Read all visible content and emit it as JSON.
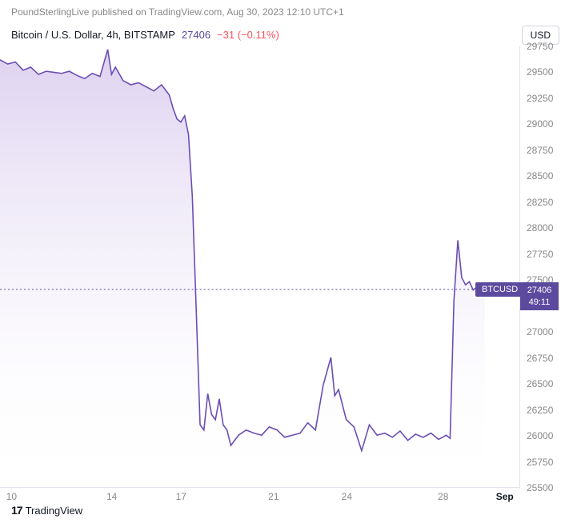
{
  "header": {
    "publisher": "PoundSterlingLive published on TradingView.com, Aug 30, 2023 12:10 UTC+1"
  },
  "symbol": {
    "title": "Bitcoin / U.S. Dollar, 4h, BITSTAMP",
    "price": "27406",
    "change": "−31 (−0.11%)"
  },
  "currency_label": "USD",
  "price_tag": {
    "pair": "BTCUSD",
    "value": "27406",
    "countdown": "49:11"
  },
  "footer": {
    "brand": "TradingView",
    "icon": "17"
  },
  "chart": {
    "type": "area",
    "line_color": "#6a4db3",
    "fill_top_color": "#cbb9e8",
    "fill_bottom_color": "#ffffff",
    "background_color": "#ffffff",
    "grid_color": "#e0e3eb",
    "dotted_line_color": "#5b4a9e",
    "current_value": 27406,
    "ylim": [
      25500,
      29750
    ],
    "yticks": [
      25500,
      25750,
      26000,
      26250,
      26500,
      26750,
      27000,
      27406,
      27500,
      27750,
      28000,
      28250,
      28500,
      28750,
      29000,
      29250,
      29500,
      29750
    ],
    "yticks_visible": [
      25500,
      25750,
      26000,
      26250,
      26500,
      26750,
      27000,
      27500,
      27750,
      28000,
      28250,
      28500,
      28750,
      29000,
      29250,
      29500,
      29750
    ],
    "xlim": [
      0,
      135
    ],
    "xticks": [
      {
        "pos": 3,
        "label": "10",
        "bold": false
      },
      {
        "pos": 29,
        "label": "14",
        "bold": false
      },
      {
        "pos": 47,
        "label": "17",
        "bold": false
      },
      {
        "pos": 71,
        "label": "21",
        "bold": false
      },
      {
        "pos": 90,
        "label": "24",
        "bold": false
      },
      {
        "pos": 115,
        "label": "28",
        "bold": false
      },
      {
        "pos": 131,
        "label": "Sep",
        "bold": true
      }
    ],
    "series": [
      [
        0,
        29620
      ],
      [
        2,
        29580
      ],
      [
        4,
        29600
      ],
      [
        6,
        29520
      ],
      [
        8,
        29550
      ],
      [
        10,
        29480
      ],
      [
        12,
        29510
      ],
      [
        14,
        29500
      ],
      [
        16,
        29490
      ],
      [
        18,
        29510
      ],
      [
        20,
        29470
      ],
      [
        22,
        29440
      ],
      [
        24,
        29490
      ],
      [
        26,
        29460
      ],
      [
        28,
        29720
      ],
      [
        29,
        29480
      ],
      [
        30,
        29550
      ],
      [
        32,
        29420
      ],
      [
        34,
        29380
      ],
      [
        36,
        29400
      ],
      [
        38,
        29360
      ],
      [
        40,
        29320
      ],
      [
        42,
        29380
      ],
      [
        44,
        29280
      ],
      [
        45,
        29150
      ],
      [
        46,
        29050
      ],
      [
        47,
        29020
      ],
      [
        48,
        29080
      ],
      [
        49,
        28900
      ],
      [
        50,
        28300
      ],
      [
        51,
        27200
      ],
      [
        52,
        26100
      ],
      [
        53,
        26050
      ],
      [
        54,
        26400
      ],
      [
        55,
        26200
      ],
      [
        56,
        26150
      ],
      [
        57,
        26350
      ],
      [
        58,
        26100
      ],
      [
        59,
        26050
      ],
      [
        60,
        25900
      ],
      [
        62,
        26000
      ],
      [
        64,
        26050
      ],
      [
        66,
        26020
      ],
      [
        68,
        26000
      ],
      [
        70,
        26080
      ],
      [
        72,
        26050
      ],
      [
        74,
        25980
      ],
      [
        76,
        26000
      ],
      [
        78,
        26020
      ],
      [
        80,
        26120
      ],
      [
        82,
        26050
      ],
      [
        84,
        26480
      ],
      [
        86,
        26750
      ],
      [
        87,
        26380
      ],
      [
        88,
        26440
      ],
      [
        90,
        26150
      ],
      [
        92,
        26080
      ],
      [
        94,
        25850
      ],
      [
        96,
        26100
      ],
      [
        98,
        26000
      ],
      [
        100,
        26020
      ],
      [
        102,
        25980
      ],
      [
        104,
        26040
      ],
      [
        106,
        25950
      ],
      [
        108,
        26010
      ],
      [
        110,
        25980
      ],
      [
        112,
        26020
      ],
      [
        114,
        25960
      ],
      [
        116,
        26000
      ],
      [
        117,
        25970
      ],
      [
        118,
        27300
      ],
      [
        119,
        27880
      ],
      [
        120,
        27520
      ],
      [
        121,
        27450
      ],
      [
        122,
        27480
      ],
      [
        123,
        27400
      ],
      [
        124,
        27430
      ],
      [
        125,
        27380
      ],
      [
        126,
        27406
      ]
    ]
  }
}
